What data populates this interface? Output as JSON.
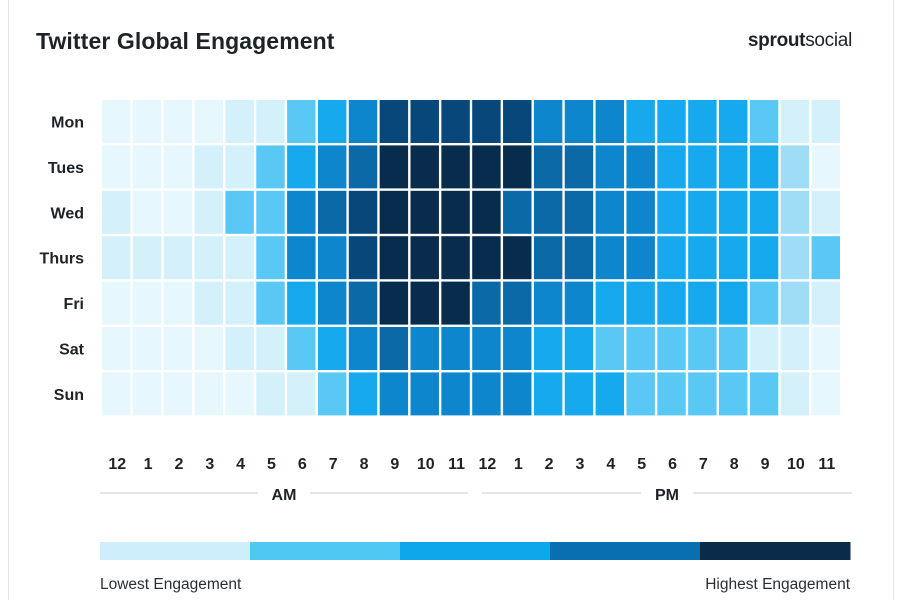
{
  "header": {
    "title": "Twitter Global Engagement",
    "brand_part1": "sprout",
    "brand_part2": "social"
  },
  "legend": {
    "low_label": "Lowest Engagement",
    "high_label": "Highest Engagement",
    "colors": [
      "#cfeefb",
      "#4fc8f4",
      "#0ea7ec",
      "#0a6fb0",
      "#0b2b4a"
    ]
  },
  "colors": {
    "levels": [
      "#f1fbfe",
      "#e6f7fd",
      "#d3f0fb",
      "#9fdcf6",
      "#5ac8f4",
      "#17a9ee",
      "#0e86cd",
      "#0a69a6",
      "#07477a",
      "#072c4c"
    ],
    "baseline": "#e3e6e8"
  },
  "chart_data": {
    "type": "heatmap",
    "title": "Twitter Global Engagement",
    "rows": [
      "Mon",
      "Tues",
      "Wed",
      "Thurs",
      "Fri",
      "Sat",
      "Sun"
    ],
    "columns": [
      "12",
      "1",
      "2",
      "3",
      "4",
      "5",
      "6",
      "7",
      "8",
      "9",
      "10",
      "11",
      "12",
      "1",
      "2",
      "3",
      "4",
      "5",
      "6",
      "7",
      "8",
      "9",
      "10",
      "11"
    ],
    "period_labels": [
      "AM",
      "PM"
    ],
    "scale_min": 0,
    "scale_max": 9,
    "values": [
      [
        1,
        1,
        1,
        1,
        2,
        2,
        4,
        5,
        6,
        8,
        8,
        8,
        8,
        8,
        6,
        6,
        6,
        5,
        5,
        5,
        5,
        4,
        2,
        2
      ],
      [
        1,
        1,
        1,
        2,
        2,
        4,
        5,
        6,
        7,
        9,
        9,
        9,
        9,
        9,
        7,
        7,
        6,
        6,
        5,
        5,
        5,
        5,
        3,
        1
      ],
      [
        2,
        1,
        1,
        2,
        4,
        4,
        6,
        7,
        8,
        9,
        9,
        9,
        9,
        7,
        7,
        7,
        6,
        6,
        5,
        5,
        5,
        5,
        3,
        2
      ],
      [
        2,
        2,
        2,
        2,
        2,
        4,
        6,
        6,
        8,
        9,
        9,
        9,
        9,
        9,
        7,
        7,
        6,
        6,
        5,
        5,
        5,
        5,
        3,
        4
      ],
      [
        1,
        1,
        1,
        2,
        2,
        4,
        5,
        6,
        7,
        9,
        9,
        9,
        7,
        7,
        6,
        6,
        5,
        5,
        5,
        5,
        5,
        4,
        3,
        2
      ],
      [
        1,
        1,
        1,
        1,
        2,
        2,
        4,
        5,
        6,
        7,
        6,
        6,
        6,
        6,
        5,
        5,
        4,
        4,
        4,
        4,
        4,
        2,
        2,
        1
      ],
      [
        1,
        1,
        1,
        1,
        1,
        2,
        2,
        4,
        5,
        6,
        6,
        6,
        6,
        6,
        5,
        5,
        5,
        4,
        4,
        4,
        4,
        4,
        2,
        1
      ]
    ]
  }
}
